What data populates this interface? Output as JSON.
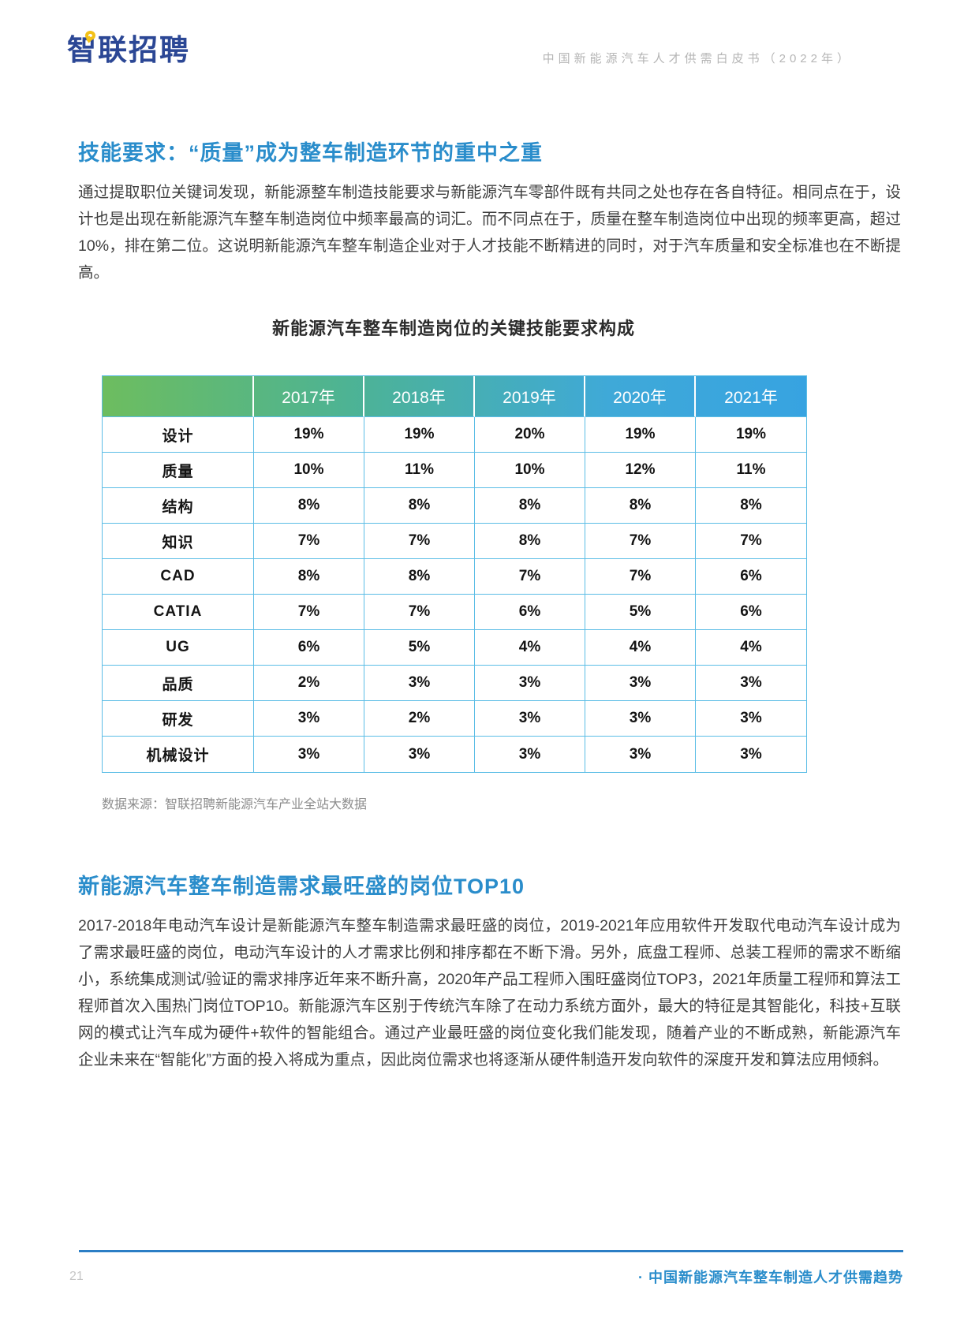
{
  "header": {
    "logo_text": "智联招聘",
    "doc_title": "中国新能源汽车人才供需白皮书（2022年）"
  },
  "section1": {
    "heading": "技能要求：“质量”成为整车制造环节的重中之重",
    "paragraph": "通过提取职位关键词发现，新能源整车制造技能要求与新能源汽车零部件既有共同之处也存在各自特征。相同点在于，设计也是出现在新能源汽车整车制造岗位中频率最高的词汇。而不同点在于，质量在整车制造岗位中出现的频率更高，超过10%，排在第二位。这说明新能源汽车整车制造企业对于人才技能不断精进的同时，对于汽车质量和安全标准也在不断提高。"
  },
  "chart_data": {
    "type": "table",
    "title": "新能源汽车整车制造岗位的关键技能要求构成",
    "columns": [
      "2017年",
      "2018年",
      "2019年",
      "2020年",
      "2021年"
    ],
    "rows": [
      {
        "label": "设计",
        "values": [
          "19%",
          "19%",
          "20%",
          "19%",
          "19%"
        ]
      },
      {
        "label": "质量",
        "values": [
          "10%",
          "11%",
          "10%",
          "12%",
          "11%"
        ]
      },
      {
        "label": "结构",
        "values": [
          "8%",
          "8%",
          "8%",
          "8%",
          "8%"
        ]
      },
      {
        "label": "知识",
        "values": [
          "7%",
          "7%",
          "8%",
          "7%",
          "7%"
        ]
      },
      {
        "label": "CAD",
        "values": [
          "8%",
          "8%",
          "7%",
          "7%",
          "6%"
        ]
      },
      {
        "label": "CATIA",
        "values": [
          "7%",
          "7%",
          "6%",
          "5%",
          "6%"
        ]
      },
      {
        "label": "UG",
        "values": [
          "6%",
          "5%",
          "4%",
          "4%",
          "4%"
        ]
      },
      {
        "label": "品质",
        "values": [
          "2%",
          "3%",
          "3%",
          "3%",
          "3%"
        ]
      },
      {
        "label": "研发",
        "values": [
          "3%",
          "2%",
          "3%",
          "3%",
          "3%"
        ]
      },
      {
        "label": "机械设计",
        "values": [
          "3%",
          "3%",
          "3%",
          "3%",
          "3%"
        ]
      }
    ],
    "source": "数据来源：智联招聘新能源汽车产业全站大数据",
    "header_gradient": [
      "#6dbd5f",
      "#37a3e1"
    ],
    "border_color": "#5bbde6"
  },
  "section2": {
    "heading": "新能源汽车整车制造需求最旺盛的岗位TOP10",
    "paragraph": "2017-2018年电动汽车设计是新能源汽车整车制造需求最旺盛的岗位，2019-2021年应用软件开发取代电动汽车设计成为了需求最旺盛的岗位，电动汽车设计的人才需求比例和排序都在不断下滑。另外，底盘工程师、总装工程师的需求不断缩小，系统集成测试/验证的需求排序近年来不断升高，2020年产品工程师入围旺盛岗位TOP3，2021年质量工程师和算法工程师首次入围热门岗位TOP10。新能源汽车区别于传统汽车除了在动力系统方面外，最大的特征是其智能化，科技+互联网的模式让汽车成为硬件+软件的智能组合。通过产业最旺盛的岗位变化我们能发现，随着产业的不断成熟，新能源汽车企业未来在“智能化”方面的投入将成为重点，因此岗位需求也将逐渐从硬件制造开发向软件的深度开发和算法应用倾斜。"
  },
  "footer": {
    "page_number": "21",
    "footer_text": "· 中国新能源汽车整车制造人才供需趋势"
  },
  "colors": {
    "accent_blue": "#2a8dcb",
    "logo_blue": "#2b4795",
    "logo_yellow": "#f3c117",
    "footer_line_blue": "#2b7ec5",
    "body_text": "#3f3f3f",
    "muted_gray": "#8c8c8c"
  }
}
